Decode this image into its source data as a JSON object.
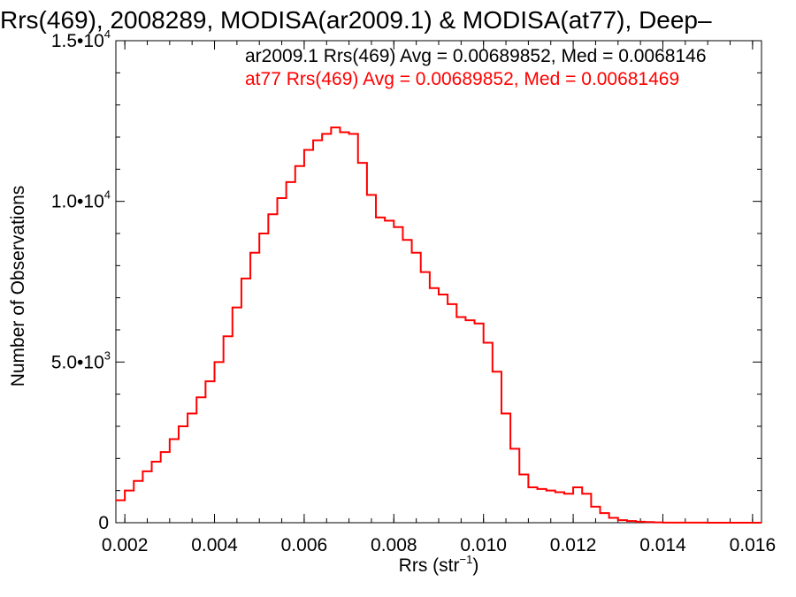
{
  "chart_data": {
    "type": "histogram-step",
    "title": "Rrs(469), 2008289, MODISA(ar2009.1) & MODISA(at77), Deep–",
    "xlabel": "Rrs (str",
    "xlabel_sup": "−1",
    "xlabel_close": ")",
    "ylabel": "Number of Observations",
    "xlim": [
      0.0018,
      0.0162
    ],
    "ylim": [
      0,
      15000
    ],
    "x_ticks": [
      {
        "value": 0.002,
        "label": "0.002"
      },
      {
        "value": 0.004,
        "label": "0.004"
      },
      {
        "value": 0.006,
        "label": "0.006"
      },
      {
        "value": 0.008,
        "label": "0.008"
      },
      {
        "value": 0.01,
        "label": "0.010"
      },
      {
        "value": 0.012,
        "label": "0.012"
      },
      {
        "value": 0.014,
        "label": "0.014"
      },
      {
        "value": 0.016,
        "label": "0.016"
      }
    ],
    "y_ticks": [
      {
        "value": 0,
        "mantissa": "0",
        "exp": ""
      },
      {
        "value": 5000,
        "mantissa": "5.0•10",
        "exp": "3"
      },
      {
        "value": 10000,
        "mantissa": "1.0•10",
        "exp": "4"
      },
      {
        "value": 15000,
        "mantissa": "1.5•10",
        "exp": "4"
      }
    ],
    "annotations": [
      {
        "text": "ar2009.1 Rrs(469) Avg = 0.00689852, Med = 0.0068146",
        "color": "#000000"
      },
      {
        "text": "at77 Rrs(469) Avg = 0.00689852, Med = 0.00681469",
        "color": "#ff0000"
      }
    ],
    "series": [
      {
        "color": "#ff0000",
        "x": [
          0.0018,
          0.002,
          0.0022,
          0.0024,
          0.0026,
          0.0028,
          0.003,
          0.0032,
          0.0034,
          0.0036,
          0.0038,
          0.004,
          0.0042,
          0.0044,
          0.0046,
          0.0048,
          0.005,
          0.0052,
          0.0054,
          0.0056,
          0.0058,
          0.006,
          0.0062,
          0.0064,
          0.0066,
          0.0068,
          0.007,
          0.0072,
          0.0074,
          0.0076,
          0.0078,
          0.008,
          0.0082,
          0.0084,
          0.0086,
          0.0088,
          0.009,
          0.0092,
          0.0094,
          0.0096,
          0.0098,
          0.01,
          0.0102,
          0.0104,
          0.0106,
          0.0108,
          0.011,
          0.0112,
          0.0114,
          0.0116,
          0.0118,
          0.012,
          0.0122,
          0.0124,
          0.0126,
          0.0128,
          0.013,
          0.0132,
          0.0134,
          0.0136,
          0.0138,
          0.014,
          0.0145,
          0.015,
          0.0155,
          0.016,
          0.0162
        ],
        "values": [
          700,
          1000,
          1300,
          1600,
          1900,
          2200,
          2600,
          3000,
          3400,
          3900,
          4400,
          5000,
          5800,
          6700,
          7600,
          8400,
          9000,
          9600,
          10100,
          10600,
          11100,
          11600,
          11900,
          12100,
          12300,
          12150,
          12100,
          11200,
          10200,
          9500,
          9400,
          9200,
          8800,
          8400,
          7800,
          7300,
          7100,
          6800,
          6400,
          6300,
          6200,
          5600,
          4700,
          3400,
          2300,
          1500,
          1100,
          1050,
          1000,
          950,
          900,
          1100,
          900,
          500,
          300,
          150,
          80,
          50,
          30,
          20,
          10,
          5,
          3,
          0,
          0,
          0,
          0
        ]
      }
    ]
  }
}
